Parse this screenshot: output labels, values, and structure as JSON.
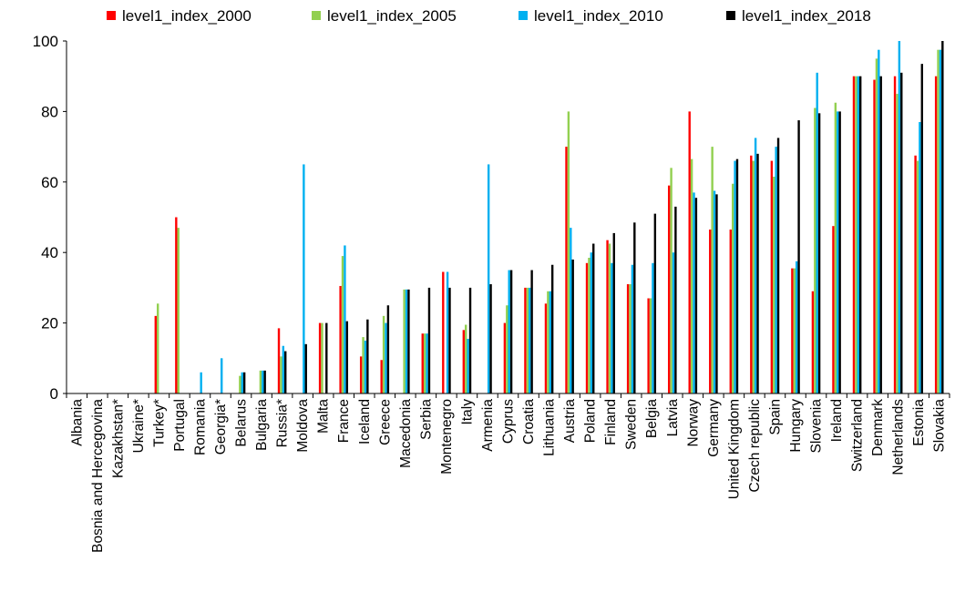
{
  "chart_data": {
    "type": "bar",
    "title": "",
    "xlabel": "",
    "ylabel": "",
    "ylim": [
      0,
      100
    ],
    "yticks": [
      0,
      20,
      40,
      60,
      80,
      100
    ],
    "legend_position": "top",
    "grid": false,
    "categories": [
      "Albania",
      "Bosnia and Hercegovina",
      "Kazakhstan*",
      "Ukraine*",
      "Turkey*",
      "Portugal",
      "Romania",
      "Georgia*",
      "Belarus",
      "Bulgaria",
      "Russia*",
      "Moldova",
      "Malta",
      "France",
      "Iceland",
      "Greece",
      "Macedonia",
      "Serbia",
      "Montenegro",
      "Italy",
      "Armenia",
      "Cyprus",
      "Croatia",
      "Lithuania",
      "Austria",
      "Poland",
      "Finland",
      "Sweden",
      "Belgia",
      "Latvia",
      "Norway",
      "Germany",
      "United Kingdom",
      "Czech republic",
      "Spain",
      "Hungary",
      "Slovenia",
      "Ireland",
      "Switzerland",
      "Denmark",
      "Netherlands",
      "Estonia",
      "Slovakia"
    ],
    "series": [
      {
        "name": "level1_index_2000",
        "color": "#ff0000",
        "values": [
          0,
          0,
          0,
          0,
          22,
          50,
          0,
          0,
          0,
          0,
          18.5,
          0,
          20,
          30.5,
          10.5,
          9.5,
          0,
          17,
          34.5,
          18,
          0,
          20,
          30,
          25.5,
          70,
          37,
          43.5,
          31,
          27,
          59,
          80,
          46.5,
          46.5,
          67.5,
          66,
          35.5,
          29,
          47.5,
          90,
          89,
          90,
          67.5,
          90
        ]
      },
      {
        "name": "level1_index_2005",
        "color": "#92d050",
        "values": [
          0,
          0,
          0,
          0,
          25.5,
          47,
          0,
          0,
          5,
          6.5,
          10.5,
          0,
          20,
          39,
          16,
          22,
          29.5,
          17,
          0,
          19.5,
          0,
          25,
          30,
          29,
          80,
          38.5,
          42.5,
          31,
          27,
          64,
          66.5,
          70,
          59.5,
          66,
          61.5,
          35.5,
          81,
          82.5,
          90,
          95,
          85,
          66,
          97.5
        ]
      },
      {
        "name": "level1_index_2010",
        "color": "#00b0f0",
        "values": [
          0,
          0,
          0,
          0,
          0,
          0,
          6,
          10,
          6,
          6.5,
          13.5,
          65,
          0,
          42,
          15,
          20,
          29.5,
          17,
          34.5,
          15.5,
          65,
          35,
          30,
          29,
          47,
          40,
          37,
          36.5,
          37,
          40,
          57,
          57.5,
          66,
          72.5,
          70,
          37.5,
          91,
          80,
          90,
          97.5,
          100,
          77,
          97.5
        ]
      },
      {
        "name": "level1_index_2018",
        "color": "#000000",
        "values": [
          0,
          0,
          0,
          0,
          0,
          0,
          0,
          0,
          6,
          6.5,
          12,
          14,
          20,
          20.5,
          21,
          25,
          29.5,
          30,
          30,
          30,
          31,
          35,
          35,
          36.5,
          38,
          42.5,
          45.5,
          48.5,
          51,
          53,
          55.5,
          56.5,
          66.5,
          68,
          72.5,
          77.5,
          79.5,
          80,
          90,
          90,
          91,
          93.5,
          100
        ]
      }
    ]
  }
}
